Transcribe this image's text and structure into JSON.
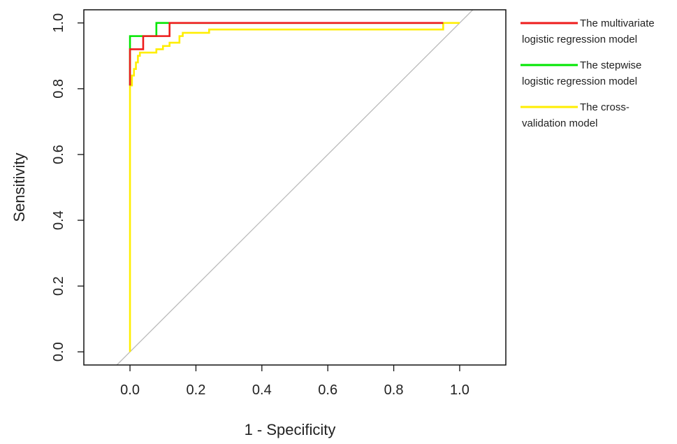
{
  "chart_data": {
    "type": "line",
    "xlabel": "1 - Specificity",
    "ylabel": "Sensitivity",
    "xlim": [
      -0.14,
      1.14
    ],
    "ylim": [
      -0.04,
      1.04
    ],
    "x_ticks": [
      0.0,
      0.2,
      0.4,
      0.6,
      0.8,
      1.0
    ],
    "x_tick_labels": [
      "0.0",
      "0.2",
      "0.4",
      "0.6",
      "0.8",
      "1.0"
    ],
    "y_ticks": [
      0.0,
      0.2,
      0.4,
      0.6,
      0.8,
      1.0
    ],
    "y_tick_labels": [
      "0.0",
      "0.2",
      "0.4",
      "0.6",
      "0.8",
      "1.0"
    ],
    "grid": false,
    "legend_position": "outside-right",
    "reference_line": {
      "x": [
        -0.04,
        1.04
      ],
      "y": [
        -0.04,
        1.04
      ],
      "color": "#bbbbbb"
    },
    "series": [
      {
        "name": "The multivariate logistic regression model",
        "legend_lines": [
          "The multivariate",
          "logistic regression model"
        ],
        "color": "#ee1c1c",
        "x": [
          0.0,
          0.0,
          0.04,
          0.04,
          0.08,
          0.08,
          0.12,
          0.12,
          0.95
        ],
        "y": [
          0.81,
          0.92,
          0.92,
          0.96,
          0.96,
          0.96,
          0.96,
          1.0,
          1.0
        ]
      },
      {
        "name": "The stepwise logistic regression model",
        "legend_lines": [
          "The stepwise",
          "logistic regression model"
        ],
        "color": "#00e600",
        "x": [
          0.0,
          0.0,
          0.08,
          0.08,
          0.95
        ],
        "y": [
          0.81,
          0.96,
          0.96,
          1.0,
          1.0
        ]
      },
      {
        "name": "The cross-validation model",
        "legend_lines": [
          "The cross-",
          "validation model"
        ],
        "color": "#ffee00",
        "x": [
          0.0,
          0.0,
          0.006,
          0.006,
          0.012,
          0.012,
          0.018,
          0.018,
          0.024,
          0.024,
          0.03,
          0.03,
          0.08,
          0.08,
          0.1,
          0.1,
          0.12,
          0.12,
          0.15,
          0.15,
          0.16,
          0.16,
          0.24,
          0.24,
          0.95,
          0.95,
          1.0
        ],
        "y": [
          0.0,
          0.81,
          0.81,
          0.84,
          0.84,
          0.86,
          0.86,
          0.88,
          0.88,
          0.9,
          0.9,
          0.91,
          0.91,
          0.92,
          0.92,
          0.93,
          0.93,
          0.94,
          0.94,
          0.96,
          0.96,
          0.97,
          0.97,
          0.98,
          0.98,
          1.0,
          1.0
        ]
      }
    ]
  }
}
